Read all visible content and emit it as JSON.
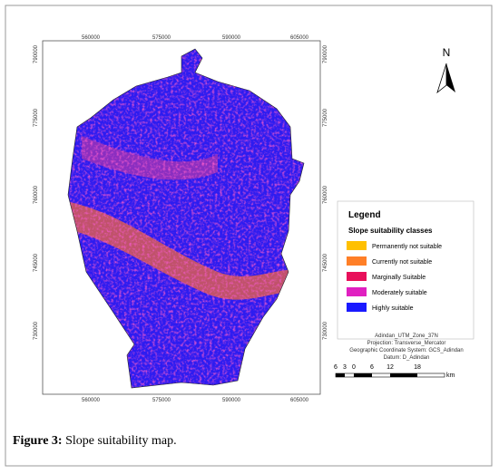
{
  "map": {
    "top_labels": [
      "560000",
      "575000",
      "590000",
      "605000"
    ],
    "bottom_labels": [
      "560000",
      "575000",
      "590000",
      "605000"
    ],
    "left_labels": [
      "790000",
      "775000",
      "760000",
      "745000",
      "730000"
    ],
    "right_labels": [
      "790000",
      "775000",
      "760000",
      "745000",
      "730000"
    ],
    "north": "N"
  },
  "legend": {
    "title": "Legend",
    "subtitle": "Slope suitability classes",
    "items": [
      {
        "label": "Permanently not suitable",
        "color": "#ffc000"
      },
      {
        "label": "Currently not suitable",
        "color": "#ff7f27"
      },
      {
        "label": "Marginally Suitable",
        "color": "#e8105a"
      },
      {
        "label": "Moderately suitable",
        "color": "#e020c0"
      },
      {
        "label": "Highly suitable",
        "color": "#1a1aff"
      }
    ]
  },
  "projection": [
    "Adindan_UTM_Zone_37N",
    "Projection: Transverse_Mercator",
    "Geographic Coordinate System: GCS_Adindan",
    "Datum: D_Adindan"
  ],
  "scale_bar": {
    "labels": [
      "6",
      "3",
      "0",
      "6",
      "12",
      "18"
    ],
    "unit": "km"
  },
  "caption": {
    "label": "Figure 3:",
    "text": "Slope suitability map."
  }
}
